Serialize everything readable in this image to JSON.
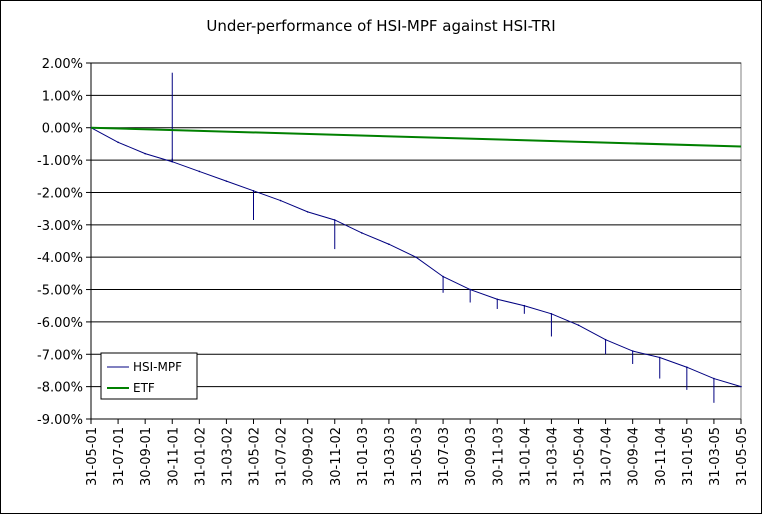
{
  "chart_data": {
    "type": "line",
    "title": "Under-performance of HSI-MPF against HSI-TRI",
    "xlabel": "",
    "ylabel": "",
    "ylim": [
      -9.0,
      2.0
    ],
    "y_ticks": [
      "2.00%",
      "1.00%",
      "0.00%",
      "-1.00%",
      "-2.00%",
      "-3.00%",
      "-4.00%",
      "-5.00%",
      "-6.00%",
      "-7.00%",
      "-8.00%",
      "-9.00%"
    ],
    "x_ticks": [
      "31-05-01",
      "31-07-01",
      "30-09-01",
      "30-11-01",
      "31-01-02",
      "31-03-02",
      "31-05-02",
      "31-07-02",
      "30-09-02",
      "30-11-02",
      "31-01-03",
      "31-03-03",
      "31-05-03",
      "31-07-03",
      "30-09-03",
      "30-11-03",
      "31-01-04",
      "31-03-04",
      "31-05-04",
      "31-07-04",
      "30-09-04",
      "30-11-04",
      "31-01-05",
      "31-03-05",
      "31-05-05"
    ],
    "grid": "horizontal",
    "legend_position": "bottom-left",
    "series": [
      {
        "name": "HSI-MPF",
        "color": "#000080",
        "x": [
          "31-05-01",
          "31-07-01",
          "30-09-01",
          "30-11-01",
          "31-01-02",
          "31-03-02",
          "31-05-02",
          "31-07-02",
          "30-09-02",
          "30-11-02",
          "31-01-03",
          "31-03-03",
          "31-05-03",
          "31-07-03",
          "30-09-03",
          "30-11-03",
          "31-01-04",
          "31-03-04",
          "31-05-04",
          "31-07-04",
          "30-09-04",
          "30-11-04",
          "31-01-05",
          "31-03-05",
          "31-05-05"
        ],
        "values": [
          0.0,
          -0.45,
          -0.8,
          -1.05,
          -1.35,
          -1.65,
          -1.95,
          -2.25,
          -2.6,
          -2.85,
          -3.25,
          -3.6,
          -4.0,
          -4.6,
          -5.0,
          -5.3,
          -5.5,
          -5.75,
          -6.1,
          -6.55,
          -6.9,
          -7.1,
          -7.4,
          -7.75,
          -8.0
        ],
        "spikes": [
          {
            "x": "30-11-01",
            "value": 1.7
          },
          {
            "x": "30-11-01",
            "value": -0.95
          },
          {
            "x": "31-05-02",
            "value": -2.85
          },
          {
            "x": "30-11-02",
            "value": -3.75
          },
          {
            "x": "31-07-03",
            "value": -5.1
          },
          {
            "x": "30-09-03",
            "value": -5.4
          },
          {
            "x": "30-11-03",
            "value": -5.6
          },
          {
            "x": "31-01-04",
            "value": -5.75
          },
          {
            "x": "31-03-04",
            "value": -6.45
          },
          {
            "x": "31-07-04",
            "value": -7.0
          },
          {
            "x": "30-09-04",
            "value": -7.3
          },
          {
            "x": "30-11-04",
            "value": -7.75
          },
          {
            "x": "31-01-05",
            "value": -8.1
          },
          {
            "x": "31-03-05",
            "value": -8.5
          }
        ]
      },
      {
        "name": "ETF",
        "color": "#008000",
        "x": [
          "31-05-01",
          "31-05-05"
        ],
        "values": [
          0.0,
          -0.58
        ]
      }
    ]
  }
}
